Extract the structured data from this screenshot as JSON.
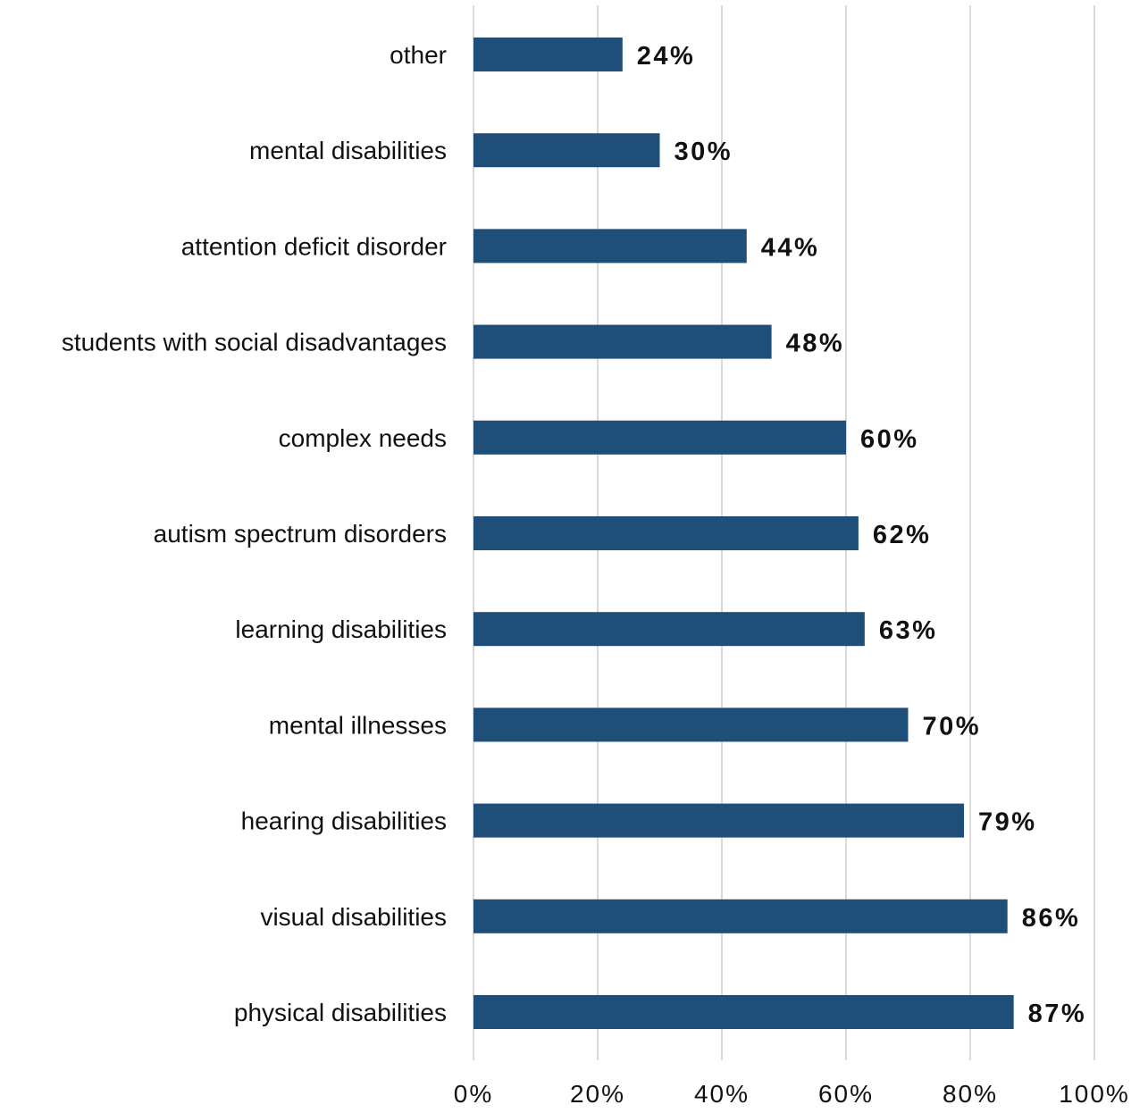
{
  "chart_data": {
    "type": "bar",
    "orientation": "horizontal",
    "categories": [
      "other",
      "mental disabilities",
      "attention deficit disorder",
      "students with social disadvantages",
      "complex needs",
      "autism spectrum disorders",
      "learning disabilities",
      "mental illnesses",
      "hearing disabilities",
      "visual disabilities",
      "physical disabilities"
    ],
    "values": [
      24,
      30,
      44,
      48,
      60,
      62,
      63,
      70,
      79,
      86,
      87
    ],
    "data_labels": [
      "24%",
      "30%",
      "44%",
      "48%",
      "60%",
      "62%",
      "63%",
      "70%",
      "79%",
      "86%",
      "87%"
    ],
    "xlim": [
      0,
      100
    ],
    "x_ticks": [
      0,
      20,
      40,
      60,
      80,
      100
    ],
    "x_tick_labels": [
      "0%",
      "20%",
      "40%",
      "60%",
      "80%",
      "100%"
    ],
    "title": "",
    "xlabel": "",
    "ylabel": "",
    "grid": "vertical",
    "legend": "none",
    "colors": {
      "bar": "#1f4e79",
      "gridline": "#d9d9d9",
      "text": "#111111"
    }
  }
}
